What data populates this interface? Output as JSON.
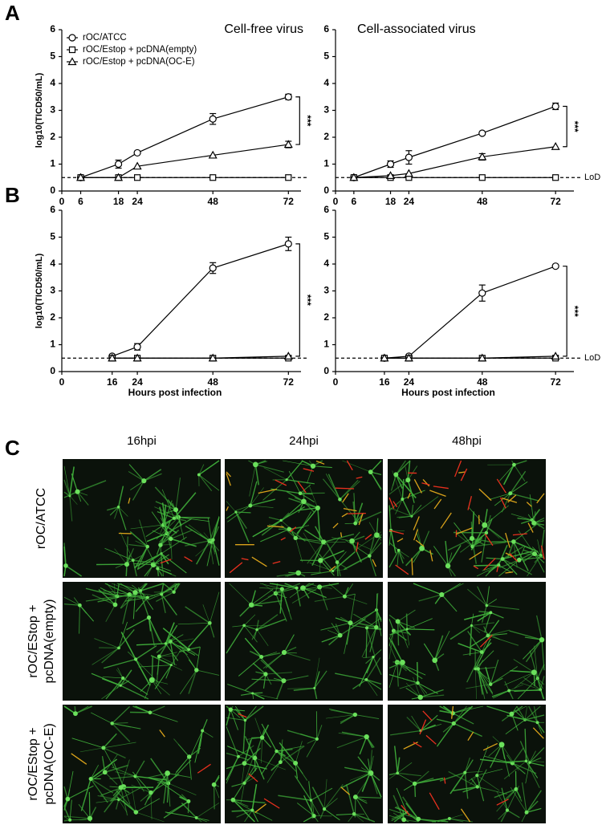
{
  "panel_labels": [
    "A",
    "B",
    "C"
  ],
  "chart_data": [
    {
      "type": "line",
      "title": "Cell-free virus",
      "y_label": "log10(TICD50/mL)",
      "legend": "upper left",
      "x": [
        6,
        18,
        24,
        48,
        72
      ],
      "xlim": [
        0,
        76
      ],
      "xticks": [
        0,
        6,
        18,
        24,
        48,
        72
      ],
      "ylim": [
        0,
        6
      ],
      "yticks": [
        0,
        1,
        2,
        3,
        4,
        5,
        6
      ],
      "series": [
        {
          "name": "rOC/ATCC",
          "marker": "circle",
          "color": "#000000",
          "values": [
            0.5,
            1.0,
            1.42,
            2.68,
            3.5
          ],
          "errors": [
            null,
            0.15,
            null,
            0.2,
            0.1
          ]
        },
        {
          "name": "rOC/Estop + pcDNA(empty)",
          "marker": "square",
          "color": "#000000",
          "values": [
            0.5,
            0.5,
            0.5,
            0.5,
            0.5
          ]
        },
        {
          "name": "rOC/Estop + pcDNA(OC-E)",
          "marker": "triangle",
          "color": "#000000",
          "values": [
            0.5,
            0.5,
            0.92,
            1.33,
            1.73
          ],
          "errors": [
            null,
            null,
            null,
            null,
            0.12
          ]
        }
      ],
      "lod": 0.5,
      "annotation": "***"
    },
    {
      "type": "line",
      "title": "Cell-associated virus",
      "x": [
        6,
        18,
        24,
        48,
        72
      ],
      "xlim": [
        0,
        78
      ],
      "xticks": [
        0,
        6,
        18,
        24,
        48,
        72
      ],
      "ylim": [
        0,
        6
      ],
      "yticks": [
        0,
        1,
        2,
        3,
        4,
        5,
        6
      ],
      "series": [
        {
          "marker": "circle",
          "color": "#000000",
          "values": [
            0.5,
            1.0,
            1.25,
            2.15,
            3.15
          ],
          "errors": [
            null,
            0.12,
            0.25,
            null,
            0.12
          ]
        },
        {
          "marker": "square",
          "color": "#000000",
          "values": [
            0.5,
            0.5,
            0.5,
            0.5,
            0.5
          ]
        },
        {
          "marker": "triangle",
          "color": "#000000",
          "values": [
            0.5,
            0.57,
            0.65,
            1.27,
            1.65
          ],
          "errors": [
            null,
            null,
            null,
            0.12,
            null
          ]
        }
      ],
      "lod": 0.5,
      "lod_label": "LoD",
      "annotation": "***"
    },
    {
      "type": "line",
      "y_label": "log10(TICD50/mL)",
      "x_label": "Hours post infection",
      "x": [
        16,
        24,
        48,
        72
      ],
      "xlim": [
        0,
        76
      ],
      "xticks": [
        0,
        16,
        24,
        48,
        72
      ],
      "ylim": [
        0,
        6
      ],
      "yticks": [
        0,
        1,
        2,
        3,
        4,
        5,
        6
      ],
      "series": [
        {
          "marker": "circle",
          "color": "#000000",
          "values": [
            0.57,
            0.92,
            3.85,
            4.75
          ],
          "errors": [
            null,
            0.12,
            0.2,
            0.25
          ]
        },
        {
          "marker": "square",
          "color": "#000000",
          "values": [
            0.5,
            0.5,
            0.5,
            0.5
          ]
        },
        {
          "marker": "triangle",
          "color": "#000000",
          "values": [
            0.5,
            0.5,
            0.5,
            0.57
          ]
        }
      ],
      "lod": 0.5,
      "annotation": "***"
    },
    {
      "type": "line",
      "x_label": "Hours post infection",
      "x": [
        16,
        24,
        48,
        72
      ],
      "xlim": [
        0,
        78
      ],
      "xticks": [
        0,
        16,
        24,
        48,
        72
      ],
      "ylim": [
        0,
        6
      ],
      "yticks": [
        0,
        1,
        2,
        3,
        4,
        5,
        6
      ],
      "series": [
        {
          "marker": "circle",
          "color": "#000000",
          "values": [
            0.5,
            0.57,
            2.92,
            3.92
          ],
          "errors": [
            null,
            null,
            0.3,
            null
          ]
        },
        {
          "marker": "square",
          "color": "#000000",
          "values": [
            0.5,
            0.5,
            0.5,
            0.5
          ]
        },
        {
          "marker": "triangle",
          "color": "#000000",
          "values": [
            0.5,
            0.5,
            0.5,
            0.57
          ]
        }
      ],
      "lod": 0.5,
      "lod_label": "LoD",
      "annotation": "***"
    }
  ],
  "image_grid": {
    "columns": [
      "16hpi",
      "24hpi",
      "48hpi"
    ],
    "rows": [
      [
        "rOC/ATCC"
      ],
      [
        "rOC/EStop +",
        "pcDNA(empty)"
      ],
      [
        "rOC/EStop +",
        "pcDNA(OC-E)"
      ]
    ]
  }
}
